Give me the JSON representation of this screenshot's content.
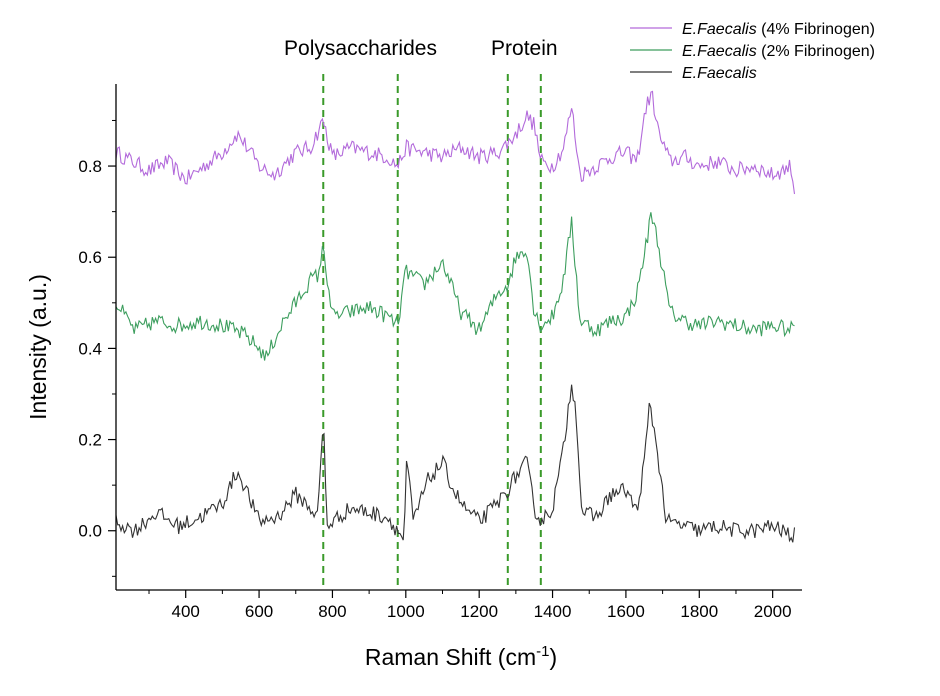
{
  "chart_data": {
    "type": "line",
    "xlabel_base": "Raman Shift (cm",
    "xlabel_sup": "-1",
    "xlabel_end": ")",
    "ylabel": "Intensity (a.u.)",
    "xlim": [
      210,
      2080
    ],
    "ylim": [
      -0.13,
      0.98
    ],
    "x_ticks": [
      400,
      600,
      800,
      1000,
      1200,
      1400,
      1600,
      1800,
      2000
    ],
    "y_ticks": [
      0.0,
      0.2,
      0.4,
      0.6,
      0.8
    ],
    "y_tick_labels": [
      "0.0",
      "0.2",
      "0.4",
      "0.6",
      "0.8"
    ],
    "region_labels": [
      {
        "text": "Polysaccharides",
        "x_range": [
          775,
          978
        ]
      },
      {
        "text": "Protein",
        "x_range": [
          1278,
          1368
        ]
      }
    ],
    "dashed_lines_x": [
      775,
      978,
      1278,
      1368
    ],
    "dashed_color": "#3a9a2a",
    "series": [
      {
        "name_italic": "E.Faecalis",
        "name_rest": " (4% Fibrinogen)",
        "color": "#b36bdb",
        "base": 0.8,
        "x": [
          210,
          300,
          350,
          400,
          450,
          500,
          540,
          560,
          600,
          640,
          700,
          740,
          775,
          800,
          850,
          900,
          950,
          978,
          1000,
          1050,
          1100,
          1150,
          1200,
          1250,
          1278,
          1300,
          1330,
          1350,
          1368,
          1400,
          1430,
          1452,
          1475,
          1520,
          1560,
          1600,
          1630,
          1655,
          1670,
          1690,
          1720,
          1760,
          1800,
          1850,
          1900,
          1950,
          2000,
          2050,
          2060
        ],
        "y": [
          0.83,
          0.79,
          0.81,
          0.77,
          0.8,
          0.83,
          0.87,
          0.85,
          0.8,
          0.78,
          0.83,
          0.84,
          0.9,
          0.82,
          0.84,
          0.83,
          0.82,
          0.8,
          0.84,
          0.83,
          0.82,
          0.84,
          0.82,
          0.83,
          0.85,
          0.87,
          0.91,
          0.89,
          0.81,
          0.8,
          0.84,
          0.93,
          0.78,
          0.8,
          0.82,
          0.83,
          0.81,
          0.93,
          0.96,
          0.87,
          0.81,
          0.82,
          0.8,
          0.81,
          0.79,
          0.8,
          0.78,
          0.8,
          0.74
        ]
      },
      {
        "name_italic": "E.Faecalis",
        "name_rest": " (2% Fibrinogen)",
        "color": "#3d9e5e",
        "base": 0.45,
        "x": [
          210,
          260,
          320,
          380,
          440,
          500,
          560,
          600,
          620,
          660,
          700,
          740,
          760,
          775,
          800,
          850,
          900,
          950,
          978,
          1000,
          1050,
          1100,
          1150,
          1200,
          1250,
          1278,
          1300,
          1330,
          1350,
          1368,
          1400,
          1430,
          1452,
          1475,
          1520,
          1560,
          1600,
          1630,
          1660,
          1670,
          1690,
          1720,
          1760,
          1800,
          1850,
          1900,
          1950,
          2000,
          2050,
          2060
        ],
        "y": [
          0.5,
          0.44,
          0.46,
          0.45,
          0.46,
          0.45,
          0.43,
          0.4,
          0.38,
          0.45,
          0.5,
          0.55,
          0.56,
          0.62,
          0.47,
          0.48,
          0.49,
          0.47,
          0.45,
          0.57,
          0.54,
          0.59,
          0.48,
          0.44,
          0.52,
          0.54,
          0.6,
          0.62,
          0.48,
          0.45,
          0.47,
          0.55,
          0.68,
          0.46,
          0.44,
          0.46,
          0.47,
          0.52,
          0.65,
          0.7,
          0.62,
          0.48,
          0.46,
          0.45,
          0.46,
          0.45,
          0.44,
          0.45,
          0.44,
          0.46
        ]
      },
      {
        "name_italic": "E.Faecalis",
        "name_rest": "",
        "color": "#333333",
        "base": 0.02,
        "x": [
          210,
          260,
          320,
          380,
          440,
          500,
          540,
          560,
          600,
          650,
          700,
          740,
          760,
          775,
          785,
          800,
          850,
          900,
          950,
          978,
          995,
          1003,
          1020,
          1060,
          1100,
          1130,
          1160,
          1200,
          1250,
          1278,
          1300,
          1330,
          1350,
          1368,
          1400,
          1430,
          1452,
          1465,
          1480,
          1520,
          1560,
          1600,
          1630,
          1650,
          1665,
          1685,
          1710,
          1760,
          1800,
          1850,
          1900,
          1950,
          2000,
          2050,
          2060
        ],
        "y": [
          0.02,
          0.0,
          0.04,
          0.01,
          0.03,
          0.06,
          0.13,
          0.1,
          0.02,
          0.03,
          0.08,
          0.05,
          0.03,
          0.25,
          0.01,
          0.02,
          0.05,
          0.04,
          0.03,
          0.0,
          -0.02,
          0.16,
          0.02,
          0.11,
          0.15,
          0.09,
          0.05,
          0.02,
          0.06,
          0.09,
          0.12,
          0.15,
          0.05,
          0.02,
          0.05,
          0.18,
          0.33,
          0.25,
          0.04,
          0.03,
          0.08,
          0.09,
          0.04,
          0.15,
          0.28,
          0.18,
          0.02,
          0.01,
          0.0,
          0.01,
          0.0,
          0.0,
          0.01,
          -0.01,
          -0.01
        ]
      }
    ],
    "legend_position": "top-right"
  }
}
